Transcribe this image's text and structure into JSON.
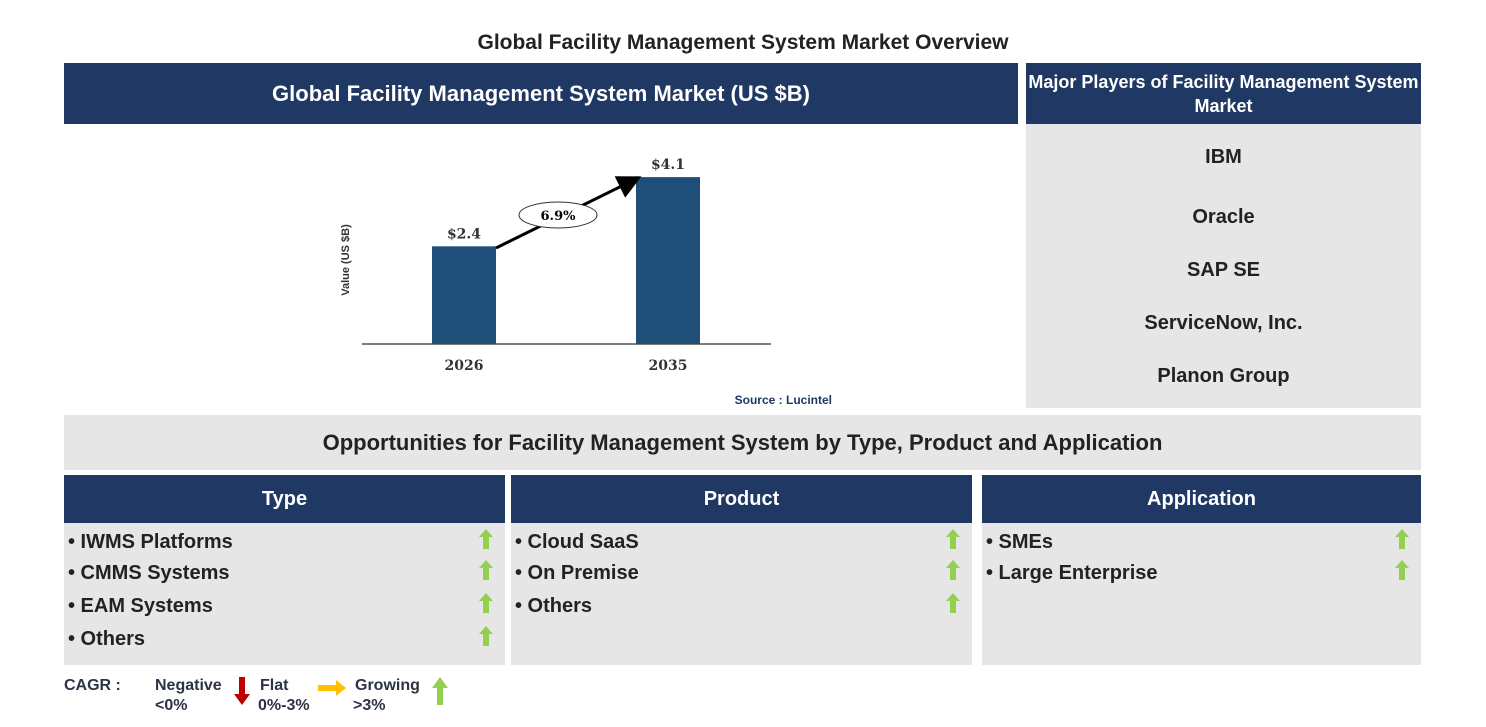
{
  "title": "Global Facility Management System Market Overview",
  "market_header": "Global Facility Management System Market (US $B)",
  "players_header": "Major Players of Facility Management System Market",
  "players": [
    "IBM",
    "Oracle",
    "SAP SE",
    "ServiceNow, Inc.",
    "Planon Group"
  ],
  "source": "Source : Lucintel",
  "chart_data": {
    "type": "bar",
    "categories": [
      "2026",
      "2035"
    ],
    "values": [
      2.4,
      4.1
    ],
    "data_labels": [
      "$2.4",
      "$4.1"
    ],
    "ylabel": "Value (US $B)",
    "annotation": "6.9%",
    "bar_color": "#1f4e79"
  },
  "opportunities_header": "Opportunities for Facility Management System by Type, Product and Application",
  "segments": [
    {
      "header": "Type",
      "items": [
        "• IWMS Platforms",
        "• CMMS Systems",
        "• EAM Systems",
        "• Others"
      ]
    },
    {
      "header": "Product",
      "items": [
        "• Cloud SaaS",
        "• On Premise",
        "• Others"
      ]
    },
    {
      "header": "Application",
      "items": [
        "• SMEs",
        "• Large Enterprise"
      ]
    }
  ],
  "legend": {
    "label": "CAGR :",
    "negative": [
      "Negative",
      "<0%"
    ],
    "flat": [
      "Flat",
      "0%-3%"
    ],
    "growing": [
      "Growing",
      ">3%"
    ],
    "colors": {
      "negative": "#c00000",
      "flat": "#ffc000",
      "growing": "#92d050"
    }
  }
}
